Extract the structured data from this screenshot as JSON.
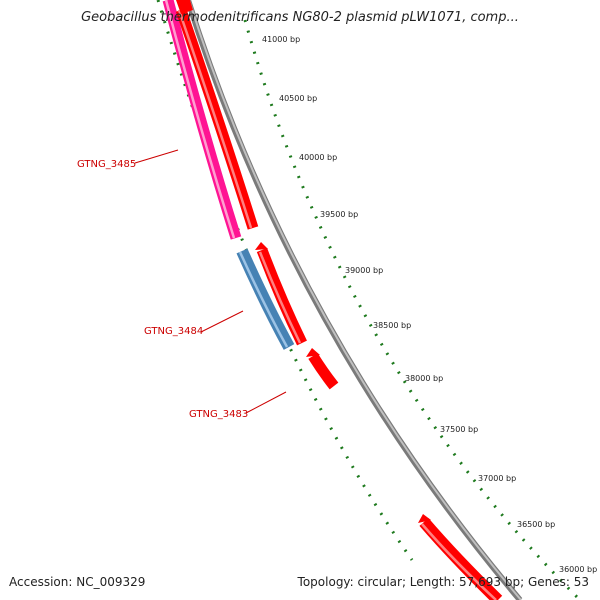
{
  "title": "Geobacillus thermodenitrificans NG80-2 plasmid pLW1071, comp...",
  "footer": {
    "accession": "Accession: NC_009329",
    "summary": "Topology: circular; Length: 57,693 bp; Genes: 53"
  },
  "colors": {
    "backbone": "#808080",
    "gene_forward": "#ff0000",
    "gene_reverse_pink": "#ff1493",
    "gene_reverse_blue": "#4682b4",
    "tick": "#1e7a1e",
    "gene_label": "#cc0000"
  },
  "ticks": [
    {
      "label": "41000 bp"
    },
    {
      "label": "40500 bp"
    },
    {
      "label": "40000 bp"
    },
    {
      "label": "39500 bp"
    },
    {
      "label": "39000 bp"
    },
    {
      "label": "38500 bp"
    },
    {
      "label": "38000 bp"
    },
    {
      "label": "37500 bp"
    },
    {
      "label": "37000 bp"
    },
    {
      "label": "36500 bp"
    },
    {
      "label": "36000 bp"
    }
  ],
  "gene_labels": [
    {
      "name": "GTNG_3485"
    },
    {
      "name": "GTNG_3484"
    },
    {
      "name": "GTNG_3483"
    }
  ]
}
